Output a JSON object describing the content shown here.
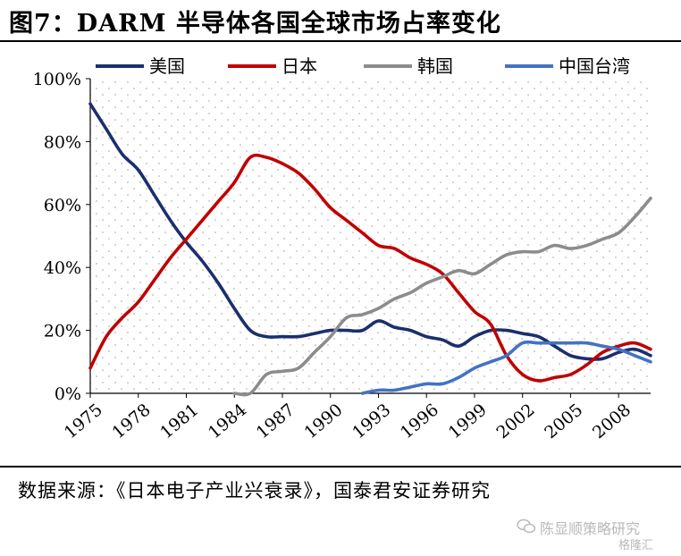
{
  "figure_title": "图7：DARM 半导体各国全球市场占率变化",
  "source_note": "数据来源：《日本电子产业兴衰录》，国泰君安证券研究",
  "watermark": {
    "text": "陈显顺策略研究",
    "sub": "格隆汇"
  },
  "colors": {
    "usa": "#1b2f6e",
    "japan": "#c00000",
    "korea": "#8c8c8c",
    "taiwan": "#4472c4",
    "plot_bg_dot": "#c8c8c8"
  },
  "chart_data": {
    "type": "line",
    "title": "DARM 半导体各国全球市场占率变化",
    "xlabel": "",
    "ylabel": "",
    "xlim": [
      1975,
      2010
    ],
    "ylim": [
      0,
      100
    ],
    "x_ticks": [
      "1975",
      "1978",
      "1981",
      "1984",
      "1987",
      "1990",
      "1993",
      "1996",
      "1999",
      "2002",
      "2005",
      "2008"
    ],
    "y_ticks": [
      "0%",
      "20%",
      "40%",
      "60%",
      "80%",
      "100%"
    ],
    "grid": false,
    "legend_position": "top",
    "series": [
      {
        "name": "美国",
        "color": "#1b2f6e",
        "x": [
          1975,
          1976,
          1977,
          1978,
          1979,
          1980,
          1981,
          1982,
          1983,
          1984,
          1985,
          1986,
          1987,
          1988,
          1989,
          1990,
          1991,
          1992,
          1993,
          1994,
          1995,
          1996,
          1997,
          1998,
          1999,
          2000,
          2001,
          2002,
          2003,
          2004,
          2005,
          2006,
          2007,
          2008,
          2009,
          2010
        ],
        "y": [
          92,
          84,
          76,
          71,
          63,
          55,
          48,
          42,
          35,
          27,
          20,
          18,
          18,
          18,
          19,
          20,
          20,
          20,
          23,
          21,
          20,
          18,
          17,
          15,
          18,
          20,
          20,
          19,
          18,
          15,
          12,
          11,
          11,
          13,
          14,
          12
        ]
      },
      {
        "name": "日本",
        "color": "#c00000",
        "x": [
          1975,
          1976,
          1977,
          1978,
          1979,
          1980,
          1981,
          1982,
          1983,
          1984,
          1985,
          1986,
          1987,
          1988,
          1989,
          1990,
          1991,
          1992,
          1993,
          1994,
          1995,
          1996,
          1997,
          1998,
          1999,
          2000,
          2001,
          2002,
          2003,
          2004,
          2005,
          2006,
          2007,
          2008,
          2009,
          2010
        ],
        "y": [
          8,
          18,
          24,
          29,
          36,
          43,
          49,
          55,
          61,
          67,
          75,
          75,
          73,
          70,
          65,
          59,
          55,
          51,
          47,
          46,
          43,
          41,
          38,
          32,
          26,
          22,
          12,
          6,
          4,
          5,
          6,
          9,
          13,
          15,
          16,
          14
        ]
      },
      {
        "name": "韩国",
        "color": "#8c8c8c",
        "x": [
          1984,
          1985,
          1986,
          1987,
          1988,
          1989,
          1990,
          1991,
          1992,
          1993,
          1994,
          1995,
          1996,
          1997,
          1998,
          1999,
          2000,
          2001,
          2002,
          2003,
          2004,
          2005,
          2006,
          2007,
          2008,
          2009,
          2010
        ],
        "y": [
          0,
          0,
          6,
          7,
          8,
          13,
          18,
          24,
          25,
          27,
          30,
          32,
          35,
          37,
          39,
          38,
          41,
          44,
          45,
          45,
          47,
          46,
          47,
          49,
          51,
          56,
          62
        ]
      },
      {
        "name": "中国台湾",
        "color": "#4472c4",
        "x": [
          1992,
          1993,
          1994,
          1995,
          1996,
          1997,
          1998,
          1999,
          2000,
          2001,
          2002,
          2003,
          2004,
          2005,
          2006,
          2007,
          2008,
          2009,
          2010
        ],
        "y": [
          0,
          1,
          1,
          2,
          3,
          3,
          5,
          8,
          10,
          12,
          16,
          16,
          16,
          16,
          16,
          15,
          14,
          12,
          10
        ]
      }
    ]
  }
}
